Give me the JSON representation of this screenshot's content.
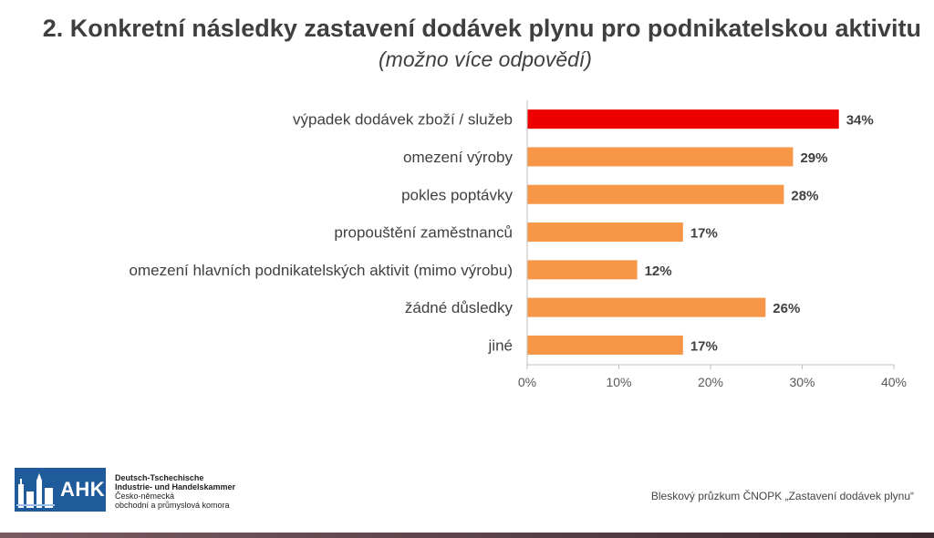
{
  "slide": {
    "title": "2. Konkretní následky zastavení dodávek plynu pro podnikatelskou aktivitu",
    "subtitle": "(možno více odpovědí)"
  },
  "chart_data": {
    "type": "bar",
    "orientation": "horizontal",
    "categories": [
      "výpadek dodávek zboží / služeb",
      "omezení výroby",
      "pokles poptávky",
      "propouštění zaměstnanců",
      "omezení hlavních podnikatelských aktivit (mimo výrobu)",
      "žádné důsledky",
      "jiné"
    ],
    "values": [
      34,
      29,
      28,
      17,
      12,
      26,
      17
    ],
    "value_labels": [
      "34%",
      "29%",
      "28%",
      "17%",
      "12%",
      "26%",
      "17%"
    ],
    "xlim": [
      0,
      40
    ],
    "xticks": [
      0,
      10,
      20,
      30,
      40
    ],
    "xtick_labels": [
      "0%",
      "10%",
      "20%",
      "30%",
      "40%"
    ],
    "colors": [
      "#ee0000",
      "#f79646",
      "#f79646",
      "#f79646",
      "#f79646",
      "#f79646",
      "#f79646"
    ],
    "grid": false
  },
  "footer": {
    "logo_ahk": "AHK",
    "logo_line1": "Deutsch-Tschechische",
    "logo_line2": "Industrie- und Handelskammer",
    "logo_line3": "Česko-německá",
    "logo_line4": "obchodní a průmyslová komora",
    "source": "Bleskový průzkum ČNOPK „Zastavení dodávek plynu“"
  },
  "colors": {
    "logo_blue": "#1f5a9a",
    "title_text": "#3f3f3f",
    "axis": "#bfbfbf"
  }
}
